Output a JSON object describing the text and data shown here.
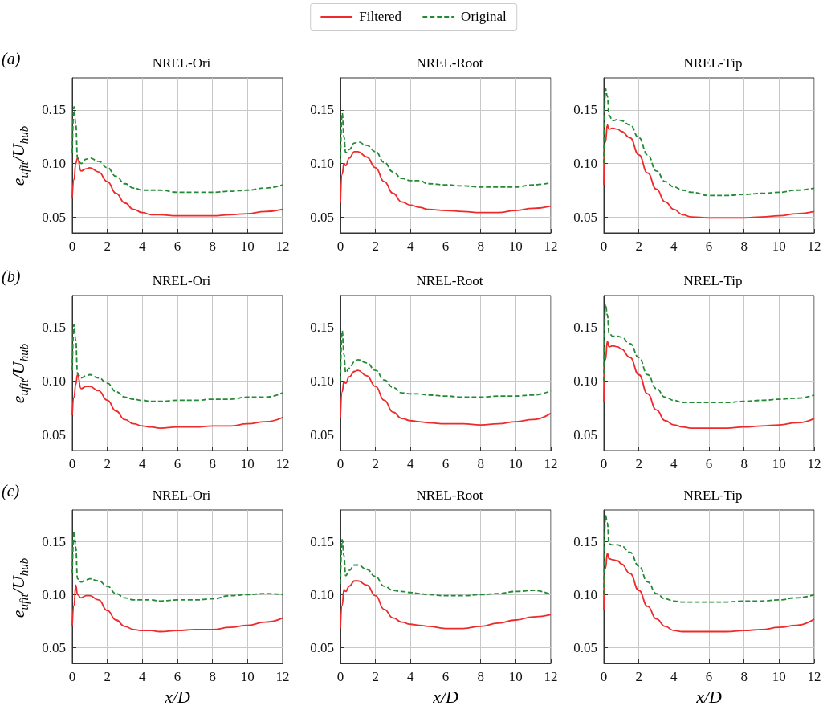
{
  "chart_data": [
    {
      "type": "line",
      "title": "NREL-Ori",
      "ylabel": "e$_{ufit}$/U$_{hub}$",
      "annotations": [
        "(a)"
      ],
      "legend": "top",
      "grid": true,
      "xlim": [
        0,
        12
      ],
      "xticks": [
        0,
        2,
        4,
        6,
        8,
        10,
        12
      ],
      "ylim": [
        0.035,
        0.18
      ],
      "yticks": [
        {
          "value": 0.05,
          "label": "0.05"
        },
        {
          "value": 0.1,
          "label": "0.10"
        },
        {
          "value": 0.15,
          "label": "0.15"
        }
      ],
      "x": [
        0,
        0.1,
        0.2,
        0.3,
        0.5,
        0.8,
        1,
        1.5,
        2,
        2.5,
        3,
        3.5,
        4,
        4.5,
        5,
        6,
        7,
        8,
        9,
        10,
        11,
        12
      ],
      "series": [
        {
          "name": "Filtered",
          "color": "#ee2a2a",
          "line_style": "solid",
          "values": [
            0.068,
            0.085,
            0.1,
            0.105,
            0.093,
            0.095,
            0.096,
            0.092,
            0.083,
            0.072,
            0.063,
            0.057,
            0.054,
            0.052,
            0.052,
            0.051,
            0.051,
            0.051,
            0.052,
            0.053,
            0.055,
            0.057
          ]
        },
        {
          "name": "Original",
          "color": "#228b34",
          "line_style": "dashed",
          "values": [
            0.11,
            0.153,
            0.137,
            0.105,
            0.1,
            0.104,
            0.105,
            0.102,
            0.096,
            0.088,
            0.081,
            0.077,
            0.075,
            0.075,
            0.075,
            0.073,
            0.073,
            0.073,
            0.074,
            0.075,
            0.077,
            0.08
          ]
        }
      ]
    },
    {
      "type": "line",
      "title": "NREL-Root",
      "grid": true,
      "xlim": [
        0,
        12
      ],
      "xticks": [
        0,
        2,
        4,
        6,
        8,
        10,
        12
      ],
      "ylim": [
        0.035,
        0.18
      ],
      "yticks": [
        {
          "value": 0.05,
          "label": "0.05"
        },
        {
          "value": 0.1,
          "label": "0.10"
        },
        {
          "value": 0.15,
          "label": "0.15"
        }
      ],
      "x": [
        0,
        0.1,
        0.2,
        0.3,
        0.5,
        0.8,
        1,
        1.5,
        2,
        2.5,
        3,
        3.5,
        4,
        4.5,
        5,
        6,
        7,
        8,
        9,
        10,
        11,
        12
      ],
      "series": [
        {
          "color": "#ee2a2a",
          "line_style": "solid",
          "values": [
            0.063,
            0.09,
            0.1,
            0.098,
            0.105,
            0.111,
            0.111,
            0.106,
            0.096,
            0.083,
            0.072,
            0.064,
            0.061,
            0.059,
            0.057,
            0.056,
            0.055,
            0.054,
            0.054,
            0.056,
            0.058,
            0.06
          ]
        },
        {
          "color": "#228b34",
          "line_style": "dashed",
          "values": [
            0.1,
            0.147,
            0.125,
            0.11,
            0.113,
            0.119,
            0.12,
            0.117,
            0.111,
            0.101,
            0.092,
            0.086,
            0.084,
            0.084,
            0.081,
            0.08,
            0.079,
            0.078,
            0.078,
            0.078,
            0.08,
            0.082
          ]
        }
      ]
    },
    {
      "type": "line",
      "title": "NREL-Tip",
      "grid": true,
      "xlim": [
        0,
        12
      ],
      "xticks": [
        0,
        2,
        4,
        6,
        8,
        10,
        12
      ],
      "ylim": [
        0.035,
        0.18
      ],
      "yticks": [
        {
          "value": 0.05,
          "label": "0.05"
        },
        {
          "value": 0.1,
          "label": "0.10"
        },
        {
          "value": 0.15,
          "label": "0.15"
        }
      ],
      "x": [
        0,
        0.1,
        0.2,
        0.3,
        0.5,
        0.8,
        1,
        1.5,
        2,
        2.5,
        3,
        3.5,
        4,
        4.5,
        5,
        6,
        7,
        8,
        9,
        10,
        11,
        12
      ],
      "series": [
        {
          "color": "#ee2a2a",
          "line_style": "solid",
          "values": [
            0.08,
            0.12,
            0.136,
            0.132,
            0.133,
            0.132,
            0.13,
            0.124,
            0.108,
            0.091,
            0.076,
            0.064,
            0.057,
            0.052,
            0.05,
            0.049,
            0.049,
            0.049,
            0.05,
            0.051,
            0.053,
            0.055
          ]
        },
        {
          "color": "#228b34",
          "line_style": "dashed",
          "values": [
            0.1,
            0.17,
            0.163,
            0.145,
            0.14,
            0.141,
            0.14,
            0.136,
            0.124,
            0.108,
            0.093,
            0.083,
            0.078,
            0.075,
            0.073,
            0.07,
            0.07,
            0.071,
            0.072,
            0.073,
            0.075,
            0.077
          ]
        }
      ]
    },
    {
      "type": "line",
      "title": "NREL-Ori",
      "ylabel": "e$_{ufit}$/U$_{hub}$",
      "annotations": [
        "(b)"
      ],
      "grid": true,
      "xlim": [
        0,
        12
      ],
      "xticks": [
        0,
        2,
        4,
        6,
        8,
        10,
        12
      ],
      "ylim": [
        0.035,
        0.18
      ],
      "yticks": [
        {
          "value": 0.05,
          "label": "0.05"
        },
        {
          "value": 0.1,
          "label": "0.10"
        },
        {
          "value": 0.15,
          "label": "0.15"
        }
      ],
      "x": [
        0,
        0.1,
        0.2,
        0.3,
        0.5,
        0.8,
        1,
        1.5,
        2,
        2.5,
        3,
        3.5,
        4,
        4.5,
        5,
        6,
        7,
        8,
        9,
        10,
        11,
        12
      ],
      "series": [
        {
          "color": "#ee2a2a",
          "line_style": "solid",
          "values": [
            0.068,
            0.085,
            0.097,
            0.106,
            0.093,
            0.095,
            0.095,
            0.091,
            0.082,
            0.072,
            0.064,
            0.06,
            0.058,
            0.057,
            0.056,
            0.057,
            0.057,
            0.058,
            0.058,
            0.06,
            0.062,
            0.066
          ]
        },
        {
          "color": "#228b34",
          "line_style": "dashed",
          "values": [
            0.11,
            0.153,
            0.138,
            0.107,
            0.103,
            0.105,
            0.106,
            0.103,
            0.098,
            0.09,
            0.085,
            0.083,
            0.082,
            0.081,
            0.081,
            0.082,
            0.082,
            0.083,
            0.083,
            0.085,
            0.085,
            0.089
          ]
        }
      ]
    },
    {
      "type": "line",
      "title": "NREL-Root",
      "grid": true,
      "xlim": [
        0,
        12
      ],
      "xticks": [
        0,
        2,
        4,
        6,
        8,
        10,
        12
      ],
      "ylim": [
        0.035,
        0.18
      ],
      "yticks": [
        {
          "value": 0.05,
          "label": "0.05"
        },
        {
          "value": 0.1,
          "label": "0.10"
        },
        {
          "value": 0.15,
          "label": "0.15"
        }
      ],
      "x": [
        0,
        0.1,
        0.2,
        0.3,
        0.5,
        0.8,
        1,
        1.5,
        2,
        2.5,
        3,
        3.5,
        4,
        4.5,
        5,
        6,
        7,
        8,
        9,
        10,
        11,
        12
      ],
      "series": [
        {
          "color": "#ee2a2a",
          "line_style": "solid",
          "values": [
            0.065,
            0.09,
            0.1,
            0.098,
            0.104,
            0.109,
            0.11,
            0.105,
            0.095,
            0.082,
            0.071,
            0.065,
            0.063,
            0.062,
            0.061,
            0.06,
            0.06,
            0.059,
            0.06,
            0.062,
            0.064,
            0.07
          ]
        },
        {
          "color": "#228b34",
          "line_style": "dashed",
          "values": [
            0.1,
            0.147,
            0.125,
            0.108,
            0.112,
            0.118,
            0.12,
            0.117,
            0.11,
            0.101,
            0.094,
            0.089,
            0.088,
            0.088,
            0.087,
            0.086,
            0.085,
            0.085,
            0.086,
            0.086,
            0.087,
            0.091
          ]
        }
      ]
    },
    {
      "type": "line",
      "title": "NREL-Tip",
      "grid": true,
      "xlim": [
        0,
        12
      ],
      "xticks": [
        0,
        2,
        4,
        6,
        8,
        10,
        12
      ],
      "ylim": [
        0.035,
        0.18
      ],
      "yticks": [
        {
          "value": 0.05,
          "label": "0.05"
        },
        {
          "value": 0.1,
          "label": "0.10"
        },
        {
          "value": 0.15,
          "label": "0.15"
        }
      ],
      "x": [
        0,
        0.1,
        0.2,
        0.3,
        0.5,
        0.8,
        1,
        1.5,
        2,
        2.5,
        3,
        3.5,
        4,
        4.5,
        5,
        6,
        7,
        8,
        9,
        10,
        11,
        12
      ],
      "series": [
        {
          "color": "#ee2a2a",
          "line_style": "solid",
          "values": [
            0.08,
            0.12,
            0.137,
            0.132,
            0.133,
            0.132,
            0.13,
            0.122,
            0.106,
            0.088,
            0.073,
            0.063,
            0.059,
            0.057,
            0.056,
            0.056,
            0.056,
            0.057,
            0.058,
            0.059,
            0.061,
            0.065
          ]
        },
        {
          "color": "#228b34",
          "line_style": "dashed",
          "values": [
            0.1,
            0.172,
            0.162,
            0.145,
            0.142,
            0.142,
            0.141,
            0.135,
            0.122,
            0.106,
            0.093,
            0.085,
            0.082,
            0.08,
            0.08,
            0.08,
            0.08,
            0.081,
            0.082,
            0.083,
            0.084,
            0.087
          ]
        }
      ]
    },
    {
      "type": "line",
      "title": "NREL-Ori",
      "xlabel": "x/D",
      "ylabel": "e$_{ufit}$/U$_{hub}$",
      "annotations": [
        "(c)"
      ],
      "grid": true,
      "xlim": [
        0,
        12
      ],
      "xticks": [
        0,
        2,
        4,
        6,
        8,
        10,
        12
      ],
      "ylim": [
        0.035,
        0.18
      ],
      "yticks": [
        {
          "value": 0.05,
          "label": "0.05"
        },
        {
          "value": 0.1,
          "label": "0.10"
        },
        {
          "value": 0.15,
          "label": "0.15"
        }
      ],
      "x": [
        0,
        0.1,
        0.2,
        0.3,
        0.5,
        0.8,
        1,
        1.5,
        2,
        2.5,
        3,
        3.5,
        4,
        4.5,
        5,
        6,
        7,
        8,
        9,
        10,
        11,
        12
      ],
      "series": [
        {
          "color": "#ee2a2a",
          "line_style": "solid",
          "values": [
            0.07,
            0.09,
            0.109,
            0.1,
            0.097,
            0.099,
            0.099,
            0.095,
            0.085,
            0.076,
            0.07,
            0.067,
            0.066,
            0.066,
            0.065,
            0.066,
            0.067,
            0.067,
            0.069,
            0.071,
            0.074,
            0.078
          ]
        },
        {
          "color": "#228b34",
          "line_style": "dashed",
          "values": [
            0.12,
            0.16,
            0.145,
            0.115,
            0.112,
            0.114,
            0.115,
            0.113,
            0.108,
            0.101,
            0.097,
            0.095,
            0.095,
            0.095,
            0.094,
            0.095,
            0.095,
            0.096,
            0.099,
            0.1,
            0.101,
            0.1
          ]
        }
      ]
    },
    {
      "type": "line",
      "title": "NREL-Root",
      "xlabel": "x/D",
      "grid": true,
      "xlim": [
        0,
        12
      ],
      "xticks": [
        0,
        2,
        4,
        6,
        8,
        10,
        12
      ],
      "ylim": [
        0.035,
        0.18
      ],
      "yticks": [
        {
          "value": 0.05,
          "label": "0.05"
        },
        {
          "value": 0.1,
          "label": "0.10"
        },
        {
          "value": 0.15,
          "label": "0.15"
        }
      ],
      "x": [
        0,
        0.1,
        0.2,
        0.3,
        0.5,
        0.8,
        1,
        1.5,
        2,
        2.5,
        3,
        3.5,
        4,
        4.5,
        5,
        6,
        7,
        8,
        9,
        10,
        11,
        12
      ],
      "series": [
        {
          "color": "#ee2a2a",
          "line_style": "solid",
          "values": [
            0.068,
            0.09,
            0.105,
            0.103,
            0.108,
            0.113,
            0.113,
            0.109,
            0.099,
            0.086,
            0.078,
            0.074,
            0.072,
            0.071,
            0.07,
            0.068,
            0.068,
            0.07,
            0.073,
            0.076,
            0.079,
            0.081
          ]
        },
        {
          "color": "#228b34",
          "line_style": "dashed",
          "values": [
            0.11,
            0.152,
            0.137,
            0.118,
            0.123,
            0.128,
            0.128,
            0.124,
            0.117,
            0.108,
            0.104,
            0.103,
            0.102,
            0.101,
            0.1,
            0.099,
            0.099,
            0.1,
            0.101,
            0.103,
            0.104,
            0.1
          ]
        }
      ]
    },
    {
      "type": "line",
      "title": "NREL-Tip",
      "xlabel": "x/D",
      "grid": true,
      "xlim": [
        0,
        12
      ],
      "xticks": [
        0,
        2,
        4,
        6,
        8,
        10,
        12
      ],
      "ylim": [
        0.035,
        0.18
      ],
      "yticks": [
        {
          "value": 0.05,
          "label": "0.05"
        },
        {
          "value": 0.1,
          "label": "0.10"
        },
        {
          "value": 0.15,
          "label": "0.15"
        }
      ],
      "x": [
        0,
        0.1,
        0.2,
        0.3,
        0.5,
        0.8,
        1,
        1.5,
        2,
        2.5,
        3,
        3.5,
        4,
        4.5,
        5,
        6,
        7,
        8,
        9,
        10,
        11,
        12
      ],
      "series": [
        {
          "color": "#ee2a2a",
          "line_style": "solid",
          "values": [
            0.085,
            0.125,
            0.139,
            0.134,
            0.133,
            0.132,
            0.129,
            0.12,
            0.104,
            0.089,
            0.077,
            0.07,
            0.066,
            0.065,
            0.065,
            0.065,
            0.065,
            0.066,
            0.067,
            0.069,
            0.071,
            0.077
          ]
        },
        {
          "color": "#228b34",
          "line_style": "dashed",
          "values": [
            0.1,
            0.175,
            0.168,
            0.148,
            0.147,
            0.147,
            0.146,
            0.14,
            0.127,
            0.112,
            0.101,
            0.096,
            0.094,
            0.093,
            0.093,
            0.093,
            0.093,
            0.094,
            0.094,
            0.095,
            0.097,
            0.1
          ]
        }
      ]
    }
  ]
}
